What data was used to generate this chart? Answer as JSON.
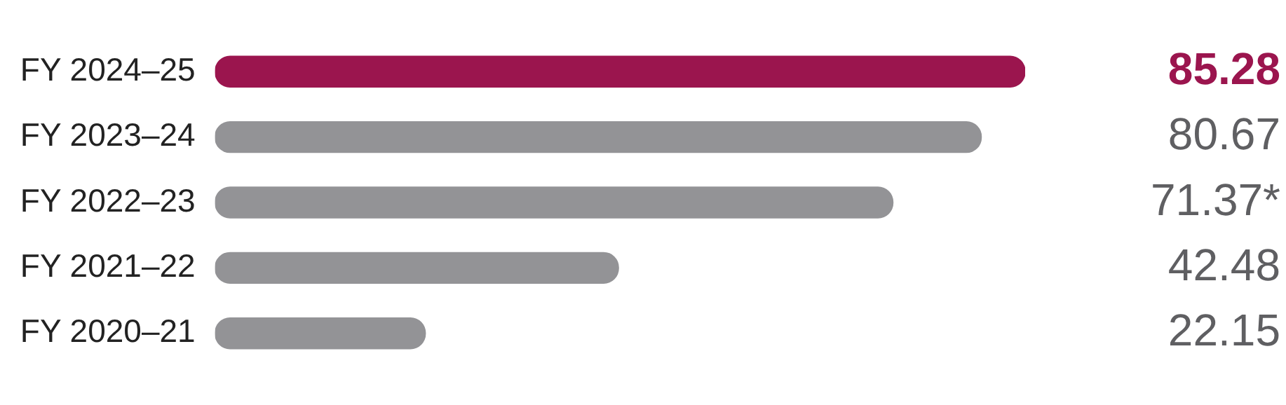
{
  "chart_data": {
    "type": "bar",
    "orientation": "horizontal",
    "categories": [
      "FY 2024–25",
      "FY 2023–24",
      "FY 2022–23",
      "FY 2021–22",
      "FY 2020–21"
    ],
    "values": [
      85.28,
      80.67,
      71.37,
      42.48,
      22.15
    ],
    "value_labels": [
      "85.28",
      "80.67",
      "71.37*",
      "42.48",
      "22.15"
    ],
    "colors": [
      "#9b154e",
      "#939396",
      "#939396",
      "#939396",
      "#939396"
    ],
    "tick_labels": "y",
    "legend": false
  }
}
